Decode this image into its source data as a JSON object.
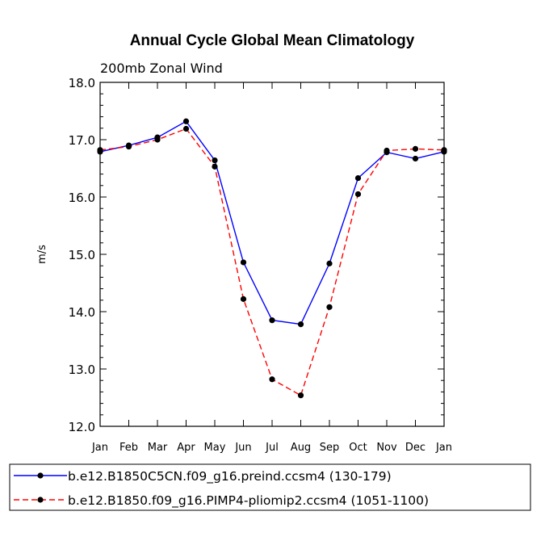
{
  "chart_data": {
    "type": "line",
    "title": "Annual Cycle Global Mean Climatology",
    "subtitle": "200mb Zonal Wind",
    "xlabel": "",
    "ylabel": "m/s",
    "ylim": [
      12.0,
      18.0
    ],
    "categories": [
      "Jan",
      "Feb",
      "Mar",
      "Apr",
      "May",
      "Jun",
      "Jul",
      "Aug",
      "Sep",
      "Oct",
      "Nov",
      "Dec",
      "Jan"
    ],
    "yticks": [
      "12.0",
      "13.0",
      "14.0",
      "15.0",
      "16.0",
      "17.0",
      "18.0"
    ],
    "grid": false,
    "legend_position": "bottom",
    "series": [
      {
        "name": "b.e12.B1850C5CN.f09_g16.preind.ccsm4 (130-179)",
        "color": "#0000ff",
        "style": "solid",
        "values": [
          16.79,
          16.9,
          17.04,
          17.32,
          16.64,
          14.86,
          13.85,
          13.78,
          14.84,
          16.33,
          16.78,
          16.67,
          16.79
        ]
      },
      {
        "name": "b.e12.B1850.f09_g16.PIMP4-pliomip2.ccsm4 (1051-1100)",
        "color": "#ff0000",
        "style": "dashed",
        "values": [
          16.82,
          16.88,
          17.0,
          17.19,
          16.53,
          14.22,
          12.82,
          12.54,
          14.08,
          16.05,
          16.81,
          16.84,
          16.82
        ]
      }
    ]
  }
}
